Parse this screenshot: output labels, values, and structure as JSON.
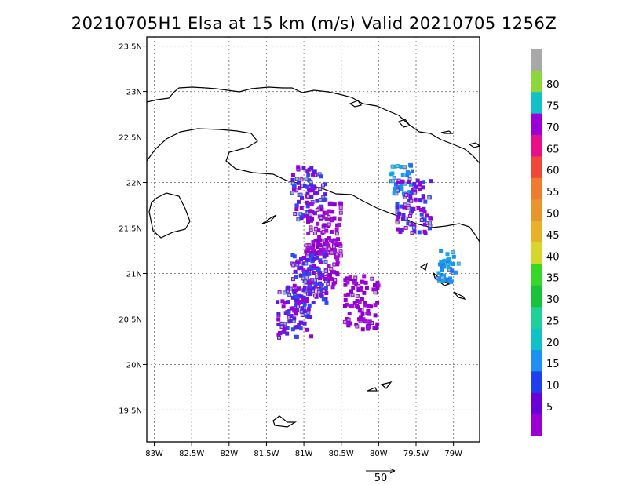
{
  "title": "20210705H1 Elsa at 15 km (m/s) Valid 20210705  1256Z",
  "chart_data": {
    "type": "heatmap",
    "title": "20210705H1 Elsa at 15 km (m/s) Valid 20210705  1256Z",
    "xlim": [
      -83.1,
      -78.65
    ],
    "ylim": [
      19.15,
      23.6
    ],
    "grid": true,
    "x_ticks": [
      -83,
      -82.5,
      -82,
      -81.5,
      -81,
      -80.5,
      -80,
      -79.5,
      -79
    ],
    "x_tick_labels": [
      "83W",
      "82.5W",
      "82W",
      "81.5W",
      "81W",
      "80.5W",
      "80W",
      "79.5W",
      "79W"
    ],
    "y_ticks": [
      19.5,
      20,
      20.5,
      21,
      21.5,
      22,
      22.5,
      23,
      23.5
    ],
    "y_tick_labels": [
      "19.5N",
      "20N",
      "20.5N",
      "21N",
      "21.5N",
      "22N",
      "22.5N",
      "23N",
      "23.5N"
    ],
    "colorbar": {
      "labels": [
        "5",
        "10",
        "15",
        "20",
        "25",
        "30",
        "35",
        "40",
        "45",
        "50",
        "55",
        "60",
        "65",
        "70",
        "75",
        "80"
      ],
      "colors": [
        "#9a00d6",
        "#6a00d8",
        "#1f3ff0",
        "#1e90f0",
        "#12c0c8",
        "#1fd09a",
        "#1bc13a",
        "#36d62a",
        "#d6d62c",
        "#e6b22c",
        "#e8952e",
        "#ee7c30",
        "#f0463c",
        "#e8108a",
        "#9a00d6",
        "#12c0c8",
        "#8cd83c",
        "#a8a8a8"
      ]
    },
    "wind_vector_key": {
      "value": 50,
      "label": "50"
    },
    "regions": [
      {
        "lon": -80.95,
        "lat": 21.9,
        "level": 10
      },
      {
        "lon": -80.75,
        "lat": 21.5,
        "level": 5
      },
      {
        "lon": -80.8,
        "lat": 21.1,
        "level": 5
      },
      {
        "lon": -80.95,
        "lat": 20.95,
        "level": 10
      },
      {
        "lon": -79.72,
        "lat": 22.05,
        "level": 15
      },
      {
        "lon": -79.55,
        "lat": 21.75,
        "level": 10
      },
      {
        "lon": -79.1,
        "lat": 21.1,
        "level": 15
      },
      {
        "lon": -80.25,
        "lat": 20.7,
        "level": 5
      },
      {
        "lon": -81.15,
        "lat": 20.6,
        "level": 10
      }
    ]
  }
}
